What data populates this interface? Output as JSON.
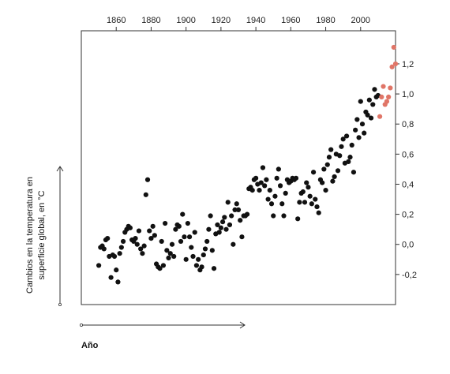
{
  "chart_data": {
    "type": "scatter",
    "title": "",
    "xlabel": "Año",
    "ylabel_lines": [
      "Cambios en la temperatura en",
      "superficie global, en °C"
    ],
    "xlim": [
      1840,
      2020
    ],
    "ylim": [
      -0.4,
      1.42
    ],
    "x_ticks": [
      1860,
      1880,
      1900,
      1920,
      1940,
      1960,
      1980,
      2000
    ],
    "x_tick_labels": [
      "1860",
      "1880",
      "1900",
      "1920",
      "1940",
      "1960",
      "1980",
      "2000"
    ],
    "y_ticks": [
      -0.2,
      0.0,
      0.2,
      0.4,
      0.6,
      0.8,
      1.0,
      1.2
    ],
    "y_tick_labels": [
      "-0,2",
      "0,0",
      "0,2",
      "0,4",
      "0,6",
      "0,8",
      "1,0",
      "1,2"
    ],
    "x_axis_position": "top",
    "y_axis_position": "right",
    "grid": false,
    "colors": {
      "historic": "#111111",
      "recent": "#e07567"
    },
    "series": [
      {
        "color_key": "historic",
        "points": [
          [
            1850,
            -0.14
          ],
          [
            1851,
            -0.02
          ],
          [
            1852,
            -0.01
          ],
          [
            1853,
            -0.03
          ],
          [
            1854,
            0.03
          ],
          [
            1855,
            0.04
          ],
          [
            1856,
            -0.08
          ],
          [
            1857,
            -0.22
          ],
          [
            1858,
            -0.07
          ],
          [
            1859,
            -0.08
          ],
          [
            1860,
            -0.17
          ],
          [
            1861,
            -0.25
          ],
          [
            1862,
            -0.06
          ],
          [
            1863,
            -0.02
          ],
          [
            1864,
            0.02
          ],
          [
            1865,
            0.08
          ],
          [
            1866,
            0.1
          ],
          [
            1867,
            0.12
          ],
          [
            1868,
            0.11
          ],
          [
            1869,
            0.03
          ],
          [
            1870,
            0.02
          ],
          [
            1871,
            0.04
          ],
          [
            1872,
            0.0
          ],
          [
            1873,
            0.09
          ],
          [
            1874,
            -0.03
          ],
          [
            1875,
            -0.06
          ],
          [
            1876,
            -0.01
          ],
          [
            1877,
            0.33
          ],
          [
            1878,
            0.43
          ],
          [
            1879,
            0.09
          ],
          [
            1880,
            0.04
          ],
          [
            1881,
            0.12
          ],
          [
            1882,
            0.06
          ],
          [
            1883,
            -0.13
          ],
          [
            1884,
            -0.15
          ],
          [
            1885,
            -0.16
          ],
          [
            1886,
            0.02
          ],
          [
            1887,
            -0.14
          ],
          [
            1888,
            0.14
          ],
          [
            1889,
            -0.04
          ],
          [
            1890,
            -0.09
          ],
          [
            1891,
            -0.06
          ],
          [
            1892,
            0.0
          ],
          [
            1893,
            -0.08
          ],
          [
            1894,
            0.1
          ],
          [
            1895,
            0.13
          ],
          [
            1896,
            0.12
          ],
          [
            1897,
            0.02
          ],
          [
            1898,
            0.2
          ],
          [
            1899,
            0.05
          ],
          [
            1900,
            -0.1
          ],
          [
            1901,
            0.14
          ],
          [
            1902,
            0.05
          ],
          [
            1903,
            -0.02
          ],
          [
            1904,
            -0.08
          ],
          [
            1905,
            0.08
          ],
          [
            1906,
            -0.14
          ],
          [
            1907,
            -0.1
          ],
          [
            1908,
            -0.17
          ],
          [
            1909,
            -0.15
          ],
          [
            1910,
            -0.07
          ],
          [
            1911,
            -0.03
          ],
          [
            1912,
            0.02
          ],
          [
            1913,
            0.1
          ],
          [
            1914,
            0.19
          ],
          [
            1915,
            -0.04
          ],
          [
            1916,
            -0.16
          ],
          [
            1917,
            0.07
          ],
          [
            1918,
            0.13
          ],
          [
            1919,
            0.08
          ],
          [
            1920,
            0.11
          ],
          [
            1921,
            0.15
          ],
          [
            1922,
            0.18
          ],
          [
            1923,
            0.1
          ],
          [
            1924,
            0.28
          ],
          [
            1925,
            0.13
          ],
          [
            1926,
            0.19
          ],
          [
            1927,
            0.0
          ],
          [
            1928,
            0.23
          ],
          [
            1929,
            0.27
          ],
          [
            1930,
            0.23
          ],
          [
            1931,
            0.16
          ],
          [
            1932,
            0.05
          ],
          [
            1933,
            0.19
          ],
          [
            1934,
            0.19
          ],
          [
            1935,
            0.2
          ],
          [
            1936,
            0.37
          ],
          [
            1937,
            0.38
          ],
          [
            1938,
            0.36
          ],
          [
            1939,
            0.43
          ],
          [
            1940,
            0.44
          ],
          [
            1941,
            0.4
          ],
          [
            1942,
            0.36
          ],
          [
            1943,
            0.41
          ],
          [
            1944,
            0.51
          ],
          [
            1945,
            0.39
          ],
          [
            1946,
            0.43
          ],
          [
            1947,
            0.3
          ],
          [
            1948,
            0.36
          ],
          [
            1949,
            0.27
          ],
          [
            1950,
            0.19
          ],
          [
            1951,
            0.32
          ],
          [
            1952,
            0.44
          ],
          [
            1953,
            0.5
          ],
          [
            1954,
            0.39
          ],
          [
            1955,
            0.27
          ],
          [
            1956,
            0.19
          ],
          [
            1957,
            0.34
          ],
          [
            1958,
            0.43
          ],
          [
            1959,
            0.41
          ],
          [
            1960,
            0.42
          ],
          [
            1961,
            0.44
          ],
          [
            1962,
            0.43
          ],
          [
            1963,
            0.44
          ],
          [
            1964,
            0.17
          ],
          [
            1965,
            0.28
          ],
          [
            1966,
            0.34
          ],
          [
            1967,
            0.35
          ],
          [
            1968,
            0.28
          ],
          [
            1969,
            0.41
          ],
          [
            1970,
            0.38
          ],
          [
            1971,
            0.32
          ],
          [
            1972,
            0.27
          ],
          [
            1973,
            0.48
          ],
          [
            1974,
            0.3
          ],
          [
            1975,
            0.25
          ],
          [
            1976,
            0.21
          ],
          [
            1977,
            0.43
          ],
          [
            1978,
            0.41
          ],
          [
            1979,
            0.5
          ],
          [
            1980,
            0.36
          ],
          [
            1981,
            0.53
          ],
          [
            1982,
            0.58
          ],
          [
            1983,
            0.63
          ],
          [
            1984,
            0.42
          ],
          [
            1985,
            0.45
          ],
          [
            1986,
            0.6
          ],
          [
            1987,
            0.49
          ],
          [
            1988,
            0.59
          ],
          [
            1989,
            0.65
          ],
          [
            1990,
            0.7
          ],
          [
            1991,
            0.54
          ],
          [
            1992,
            0.72
          ],
          [
            1993,
            0.55
          ],
          [
            1994,
            0.58
          ],
          [
            1995,
            0.66
          ],
          [
            1996,
            0.48
          ],
          [
            1997,
            0.76
          ],
          [
            1998,
            0.83
          ],
          [
            1999,
            0.71
          ],
          [
            2000,
            0.95
          ],
          [
            2001,
            0.8
          ],
          [
            2002,
            0.74
          ],
          [
            2003,
            0.88
          ],
          [
            2004,
            0.86
          ],
          [
            2005,
            0.96
          ],
          [
            2006,
            0.84
          ],
          [
            2007,
            0.93
          ],
          [
            2008,
            1.03
          ],
          [
            2009,
            0.98
          ],
          [
            2010,
            0.99
          ]
        ]
      },
      {
        "color_key": "recent",
        "points": [
          [
            2011,
            0.85
          ],
          [
            2012,
            0.98
          ],
          [
            2013,
            1.05
          ],
          [
            2014,
            0.93
          ],
          [
            2015,
            0.95
          ],
          [
            2016,
            0.98
          ],
          [
            2017,
            1.04
          ],
          [
            2018,
            1.18
          ],
          [
            2019,
            1.31
          ],
          [
            2020,
            1.2
          ]
        ]
      }
    ]
  }
}
